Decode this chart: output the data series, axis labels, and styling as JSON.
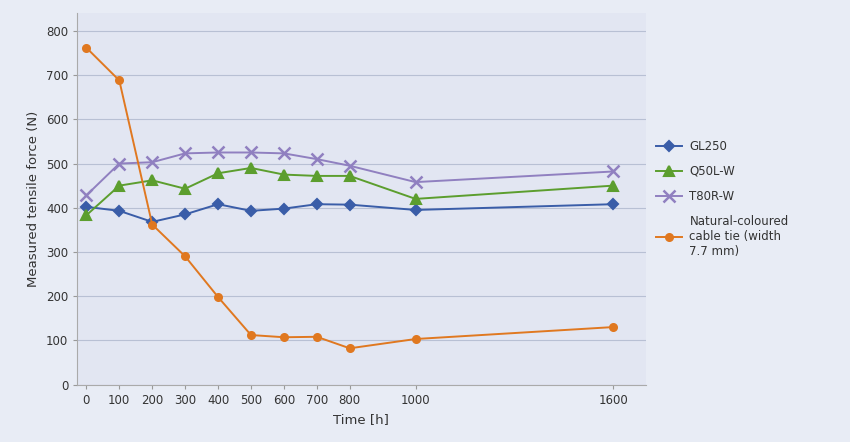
{
  "title": "",
  "xlabel": "Time [h]",
  "ylabel": "Measured tensile force (N)",
  "background_color": "#e8ecf5",
  "plot_bg_color": "#e2e6f2",
  "xlim": [
    -30,
    1700
  ],
  "ylim": [
    0,
    840
  ],
  "yticks": [
    0,
    100,
    200,
    300,
    400,
    500,
    600,
    700,
    800
  ],
  "xticks": [
    0,
    100,
    200,
    300,
    400,
    500,
    600,
    700,
    800,
    1000,
    1600
  ],
  "series": [
    {
      "label": "GL250",
      "color": "#3a5da8",
      "marker": "D",
      "markersize": 5,
      "linewidth": 1.4,
      "x": [
        0,
        100,
        200,
        300,
        400,
        500,
        600,
        700,
        800,
        1000,
        1600
      ],
      "y": [
        402,
        393,
        368,
        385,
        408,
        393,
        398,
        408,
        407,
        395,
        408
      ]
    },
    {
      "label": "Q50L-W",
      "color": "#5c9e2e",
      "marker": "^",
      "markersize": 7,
      "linewidth": 1.4,
      "x": [
        0,
        100,
        200,
        300,
        400,
        500,
        600,
        700,
        800,
        1000,
        1600
      ],
      "y": [
        383,
        450,
        462,
        443,
        478,
        490,
        475,
        472,
        472,
        420,
        450
      ]
    },
    {
      "label": "T80R-W",
      "color": "#9080c0",
      "marker": "x",
      "markersize": 9,
      "markeredgewidth": 1.8,
      "linewidth": 1.4,
      "x": [
        0,
        100,
        200,
        300,
        400,
        500,
        600,
        700,
        800,
        1000,
        1600
      ],
      "y": [
        428,
        500,
        503,
        523,
        525,
        525,
        523,
        510,
        495,
        458,
        482
      ]
    },
    {
      "label": "Natural-coloured\ncable tie (width\n7.7 mm)",
      "color": "#e07820",
      "marker": "o",
      "markersize": 5,
      "linewidth": 1.4,
      "x": [
        0,
        100,
        200,
        300,
        400,
        500,
        600,
        700,
        800,
        1000,
        1600
      ],
      "y": [
        762,
        688,
        362,
        290,
        198,
        112,
        107,
        108,
        82,
        103,
        130
      ]
    }
  ],
  "grid_color": "#b8c0d4",
  "legend_fontsize": 8.5,
  "axis_label_fontsize": 9.5,
  "tick_fontsize": 8.5
}
